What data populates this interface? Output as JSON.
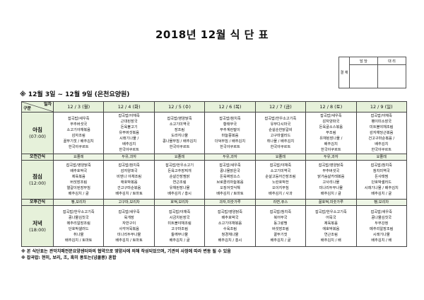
{
  "title": "2018년 12월 식 단 표",
  "approval": {
    "label": "결 재",
    "col1": "담 당",
    "col2": "대 리"
  },
  "subtitle": "※ 12월 3일 ~ 12월 9일 (은천요양원)",
  "table": {
    "corner_top": "일자",
    "corner_bottom": "구분",
    "dates": [
      "12 / 3 (월)",
      "12 / 4 (화)",
      "12 / 5 (수)",
      "12 / 6 (목)",
      "12 / 7 (금)",
      "12 / 8 (토)",
      "12 / 9 (일)"
    ],
    "rows": [
      {
        "type": "meal",
        "label": "아침",
        "time": "(07:00)",
        "cells": [
          [
            "잡곡밥/새우죽",
            "부추버섯국",
            "소고기야채볶음",
            "감자조림",
            "꼴뚜기젓 / 배추김치",
            "한국야쿠르트"
          ],
          [
            "잡곡밥/야채죽",
            "근대된장국",
            "돈육불고기",
            "유부버섯볶음",
            "시래기나물 /",
            "배추김치",
            "한국야쿠르트"
          ],
          [
            "잡곡밥/영양닭죽",
            "소고기미역국",
            "장조림",
            "도라지나물",
            "콩나물무침 / 배추김치",
            "한국야쿠르트"
          ],
          [
            "잡곡밥/참치죽",
            "황태무국",
            "부추계란말이",
            "마늘쫑볶음",
            "더덕무침 / 배추김치",
            "한국야쿠르트"
          ],
          [
            "잡곡밥/한우소고기죽",
            "유부다시마국",
            "순살순한닭갈비",
            "고구마샐러드",
            "취나물 / 배추김치",
            "한국야쿠르트"
          ],
          [
            "잡곡밥/새우죽",
            "감자양파국",
            "돈육굴소스볶음",
            "무조림",
            "유채된장나물 /",
            "배추김치",
            "한국야쿠르트"
          ],
          [
            "잡곡밥/야채죽",
            "팽이미소장국",
            "미트볼야채조림",
            "감자채당근볶음",
            "건고구마순볶음 /",
            "배추김치",
            "한국야쿠르트"
          ]
        ]
      },
      {
        "type": "snack",
        "label": "오전간식",
        "cells": [
          "요플레",
          "두유,과자",
          "요플레",
          "두유,과자",
          "요플레",
          "두유,과자",
          "요플레"
        ]
      },
      {
        "type": "meal",
        "label": "점심",
        "time": "(12:00)",
        "cells": [
          [
            "잡곡밥/영양닭죽",
            "배추호박국",
            "제육볶음",
            "버섯장조림",
            "열갈이된장무침",
            "배추김치 / 귤"
          ],
          [
            "잡곡밥/참치죽",
            "감자양파국",
            "비엔나 야채조림",
            "애호박볶음",
            "건고구마순볶음",
            "배추김치 / 토마토"
          ],
          [
            "잡곡밥/한우소고기",
            "돈육고추장찌개",
            "순살간장찜닭",
            "연근조림",
            "유채된장나물",
            "배추김치 / 홍시"
          ],
          [
            "잡곡밥/새우죽",
            "콩나물맑은국",
            "돈육짜장소스",
            "브로콜리마늘볶음",
            "오징어젓식해",
            "배추김치 / 토마토"
          ],
          [
            "잡곡밥/야채죽",
            "소고기미역국",
            "순살고등어간장조림",
            "노란호박전",
            "오이지무침",
            "배추김치 / 사과"
          ],
          [
            "잡곡밥/영양닭죽",
            "부추버섯국",
            "닭가슴살카레볶음",
            "고사리나물",
            "미나리두부나물",
            "배추김치 / 귤"
          ],
          [
            "잡곡밥/참치죽",
            "참치미역국",
            "돈사태찜",
            "단호박샐러드",
            "시래기나물 / 배추김치",
            "배추김치 / 귤"
          ]
        ]
      },
      {
        "type": "snack",
        "label": "오후간식",
        "cells": [
          "빵,보리차",
          "고구마,보리차",
          "호떡,보리차",
          "과자,미숫가루",
          "라면,쥬스",
          "꿀호떡,미숫가루",
          "빵,보리차"
        ]
      },
      {
        "type": "meal",
        "label": "저녁",
        "time": "(18:00)",
        "cells": [
          [
            "잡곡밥/한우소고기죽",
            "콩나물김칫국",
            "메추리알장조림",
            "단호박샐러드",
            "취나물",
            "배추김치 / 토마토"
          ],
          [
            "잡곡밥/새우죽",
            "육개장",
            "자반구이",
            "사각어묵볶음",
            "미나리두부나물",
            "배추김치 / 토마토"
          ],
          [
            "잡곡밥/야채죽",
            "시금치된장국",
            "미트볼야채조림",
            "고구마조림",
            "들깨무나물",
            "배추김치 / 귤"
          ],
          [
            "잡곡밥/영양닭죽",
            "배추호박국",
            "소고기야채볶음",
            "수육조림",
            "청경채나물",
            "배추김치 / 홍시"
          ],
          [
            "잡곡밥/참치죽",
            "북어무국",
            "동그랑땡",
            "버섯장조림",
            "꼴뚜기젓",
            "배추김치 / 귤"
          ],
          [
            "잡곡밥/한우소고기죽",
            "어묵국",
            "제육볶음",
            "애호박볶음",
            "연근조림",
            "배추김치 / 배"
          ],
          [
            "잡곡밥/새우죽",
            "콩나물김칫국",
            "두부강정",
            "메추리알장조림",
            "시래기나물",
            "배추김치 / 배"
          ]
        ]
      }
    ]
  },
  "notes": [
    "※ 본 식단표는 관악치매전문요양센터와의 협약으로 영양사에 의해 작성되었으며, 기관의 사정에 따라 변동 될 수 있음",
    "※ 잡곡밥: 현미, 보리, 조, 흑미 콩또는(넝쿨콩) 혼합"
  ],
  "colors": {
    "header_bg": "#e6f1da",
    "snack_bg": "#eef6e6",
    "border": "#444444"
  }
}
